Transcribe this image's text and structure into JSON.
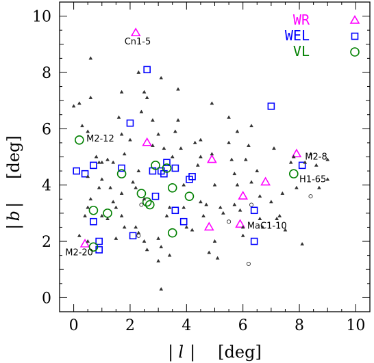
{
  "chart_data": {
    "type": "scatter",
    "title": "",
    "xlabel": "| l |   [deg]",
    "xlabel_parts": [
      "|",
      "l",
      "|",
      "[deg]"
    ],
    "ylabel": "| b |   [deg]",
    "ylabel_parts": [
      "|",
      "b",
      "|",
      "[deg]"
    ],
    "xlim": [
      -0.5,
      10.5
    ],
    "ylim": [
      -0.5,
      10.5
    ],
    "x_ticks": [
      0,
      2,
      4,
      6,
      8,
      10
    ],
    "y_ticks": [
      0,
      2,
      4,
      6,
      8,
      10
    ],
    "grid": false,
    "legend_position": "top-right",
    "colors": {
      "WR": "#ff00ff",
      "WEL": "#0000ff",
      "VL": "#008000",
      "other": "#333333"
    },
    "series": [
      {
        "name": "WR",
        "marker": "triangle",
        "points": [
          [
            2.2,
            9.4
          ],
          [
            2.6,
            5.5
          ],
          [
            4.9,
            4.9
          ],
          [
            7.9,
            5.1
          ],
          [
            6.8,
            4.1
          ],
          [
            6.0,
            3.6
          ],
          [
            4.8,
            2.5
          ],
          [
            5.9,
            2.6
          ],
          [
            0.4,
            1.9
          ]
        ]
      },
      {
        "name": "WEL",
        "marker": "square",
        "points": [
          [
            2.6,
            8.1
          ],
          [
            7.0,
            6.8
          ],
          [
            2.0,
            6.2
          ],
          [
            0.1,
            4.5
          ],
          [
            0.4,
            4.4
          ],
          [
            0.7,
            4.7
          ],
          [
            1.7,
            4.6
          ],
          [
            2.8,
            4.5
          ],
          [
            3.1,
            4.5
          ],
          [
            3.3,
            4.8
          ],
          [
            3.2,
            4.4
          ],
          [
            3.6,
            4.6
          ],
          [
            4.2,
            4.3
          ],
          [
            4.1,
            4.2
          ],
          [
            8.1,
            4.7
          ],
          [
            2.9,
            3.6
          ],
          [
            3.6,
            3.1
          ],
          [
            3.9,
            2.7
          ],
          [
            6.4,
            3.1
          ],
          [
            0.7,
            2.7
          ],
          [
            2.1,
            2.2
          ],
          [
            0.9,
            2.0
          ],
          [
            0.9,
            1.7
          ],
          [
            6.4,
            2.0
          ]
        ]
      },
      {
        "name": "VL",
        "marker": "circle",
        "points": [
          [
            0.2,
            5.6
          ],
          [
            1.7,
            4.4
          ],
          [
            2.9,
            4.7
          ],
          [
            3.3,
            4.6
          ],
          [
            3.5,
            3.9
          ],
          [
            2.4,
            3.7
          ],
          [
            2.6,
            3.4
          ],
          [
            2.7,
            3.3
          ],
          [
            4.1,
            3.6
          ],
          [
            0.7,
            3.1
          ],
          [
            1.2,
            3.0
          ],
          [
            3.5,
            2.3
          ],
          [
            0.7,
            1.8
          ],
          [
            7.8,
            4.4
          ]
        ]
      },
      {
        "name": "",
        "marker": "small-triangle",
        "points": [
          [
            0.0,
            6.8
          ],
          [
            0.2,
            6.9
          ],
          [
            0.6,
            7.1
          ],
          [
            0.6,
            8.5
          ],
          [
            0.3,
            6.1
          ],
          [
            0.5,
            5.9
          ],
          [
            0.8,
            5.0
          ],
          [
            0.9,
            4.8
          ],
          [
            1.0,
            4.8
          ],
          [
            1.2,
            4.9
          ],
          [
            1.4,
            4.8
          ],
          [
            0.5,
            4.3
          ],
          [
            1.0,
            4.2
          ],
          [
            0.9,
            3.9
          ],
          [
            1.3,
            3.9
          ],
          [
            0.6,
            3.5
          ],
          [
            0.5,
            3.2
          ],
          [
            0.4,
            2.9
          ],
          [
            1.0,
            2.9
          ],
          [
            1.2,
            2.8
          ],
          [
            0.2,
            2.2
          ],
          [
            0.5,
            2.0
          ],
          [
            1.4,
            3.4
          ],
          [
            1.5,
            3.2
          ],
          [
            1.7,
            3.7
          ],
          [
            1.7,
            2.9
          ],
          [
            1.8,
            2.5
          ],
          [
            1.5,
            2.1
          ],
          [
            1.6,
            6.4
          ],
          [
            1.7,
            5.8
          ],
          [
            1.7,
            7.3
          ],
          [
            1.8,
            5.1
          ],
          [
            2.0,
            5.6
          ],
          [
            2.1,
            4.1
          ],
          [
            2.2,
            3.9
          ],
          [
            2.3,
            4.5
          ],
          [
            2.4,
            6.6
          ],
          [
            2.5,
            7.3
          ],
          [
            2.6,
            7.1
          ],
          [
            2.8,
            6.3
          ],
          [
            3.0,
            5.8
          ],
          [
            2.8,
            5.4
          ],
          [
            2.5,
            3.5
          ],
          [
            2.2,
            2.5
          ],
          [
            2.3,
            2.3
          ],
          [
            2.6,
            1.7
          ],
          [
            2.5,
            2.0
          ],
          [
            3.0,
            2.1
          ],
          [
            3.1,
            1.8
          ],
          [
            3.3,
            2.9
          ],
          [
            3.4,
            3.2
          ],
          [
            3.2,
            5.3
          ],
          [
            3.5,
            5.0
          ],
          [
            3.7,
            6.3
          ],
          [
            3.6,
            5.9
          ],
          [
            3.7,
            7.4
          ],
          [
            3.8,
            5.3
          ],
          [
            3.9,
            4.0
          ],
          [
            3.9,
            3.2
          ],
          [
            4.0,
            2.5
          ],
          [
            4.2,
            2.4
          ],
          [
            4.3,
            5.5
          ],
          [
            4.5,
            5.0
          ],
          [
            4.4,
            4.7
          ],
          [
            4.5,
            3.4
          ],
          [
            4.6,
            2.9
          ],
          [
            4.7,
            3.3
          ],
          [
            4.9,
            6.9
          ],
          [
            4.9,
            5.1
          ],
          [
            5.0,
            4.0
          ],
          [
            5.2,
            3.2
          ],
          [
            5.3,
            3.0
          ],
          [
            5.5,
            5.5
          ],
          [
            5.5,
            6.4
          ],
          [
            5.6,
            4.9
          ],
          [
            5.8,
            5.9
          ],
          [
            5.7,
            4.4
          ],
          [
            5.7,
            3.3
          ],
          [
            5.8,
            4.0
          ],
          [
            5.9,
            3.1
          ],
          [
            6.0,
            2.5
          ],
          [
            6.1,
            4.9
          ],
          [
            6.2,
            5.4
          ],
          [
            6.3,
            4.1
          ],
          [
            6.3,
            6.1
          ],
          [
            6.5,
            4.5
          ],
          [
            6.6,
            3.6
          ],
          [
            6.6,
            2.8
          ],
          [
            6.7,
            2.5
          ],
          [
            7.0,
            3.4
          ],
          [
            7.1,
            5.3
          ],
          [
            7.2,
            2.8
          ],
          [
            7.3,
            2.9
          ],
          [
            7.4,
            3.7
          ],
          [
            7.5,
            2.4
          ],
          [
            7.7,
            4.8
          ],
          [
            7.8,
            5.0
          ],
          [
            7.9,
            3.9
          ],
          [
            8.2,
            4.8
          ],
          [
            8.4,
            5.1
          ],
          [
            8.6,
            4.7
          ],
          [
            8.7,
            3.9
          ],
          [
            9.0,
            4.2
          ],
          [
            9.0,
            4.9
          ],
          [
            8.1,
            1.9
          ],
          [
            4.8,
            1.6
          ],
          [
            5.1,
            1.4
          ],
          [
            3.4,
            1.5
          ],
          [
            6.0,
            2.2
          ],
          [
            3.0,
            1.3
          ],
          [
            3.1,
            0.3
          ],
          [
            3.1,
            7.8
          ],
          [
            2.3,
            8.0
          ],
          [
            4.5,
            5.6
          ],
          [
            5.0,
            2.0
          ]
        ]
      },
      {
        "name": "",
        "marker": "small-circle",
        "points": [
          [
            2.4,
            3.3
          ],
          [
            2.3,
            2.2
          ],
          [
            5.5,
            2.7
          ],
          [
            6.3,
            3.3
          ],
          [
            8.4,
            3.6
          ],
          [
            6.2,
            1.2
          ]
        ]
      }
    ],
    "annotations": [
      {
        "text": "Cn1-5",
        "x": 1.8,
        "y": 9.0
      },
      {
        "text": "M2-12",
        "x": 0.45,
        "y": 5.55
      },
      {
        "text": "M2-8",
        "x": 8.2,
        "y": 4.9
      },
      {
        "text": "H1-65",
        "x": 8.0,
        "y": 4.1
      },
      {
        "text": "MaC1-10",
        "x": 6.15,
        "y": 2.45
      },
      {
        "text": "M2-20",
        "x": -0.3,
        "y": 1.5
      }
    ],
    "legend": [
      {
        "label": "WR",
        "marker": "triangle",
        "color": "#ff00ff"
      },
      {
        "label": "WEL",
        "marker": "square",
        "color": "#0000ff"
      },
      {
        "label": "VL",
        "marker": "circle",
        "color": "#008000"
      }
    ]
  }
}
